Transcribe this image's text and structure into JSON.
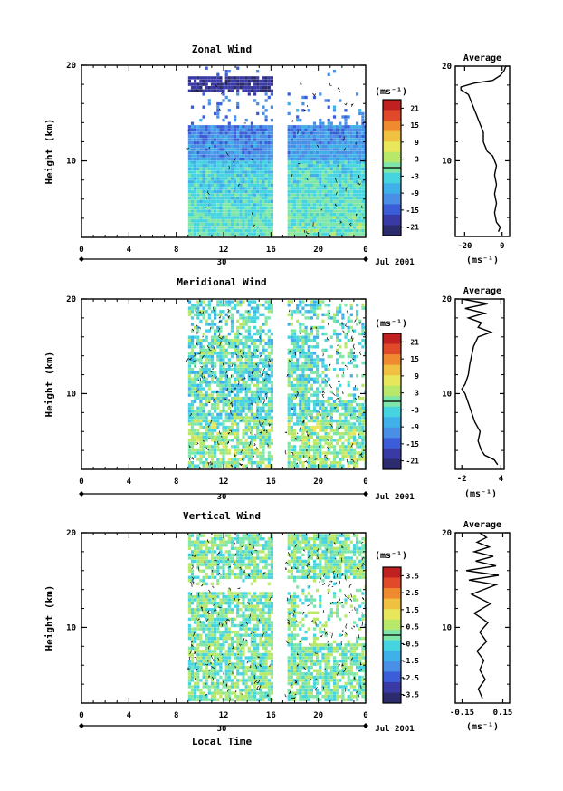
{
  "chart_data": [
    {
      "type": "heatmap",
      "title": "Zonal Wind",
      "ylabel": "Height (km)",
      "xlabel": "",
      "ylim": [
        2,
        20
      ],
      "y_ticks": [
        "20",
        "10"
      ],
      "x_ticks": [
        "0",
        "4",
        "8",
        "12",
        "16",
        "20",
        "0"
      ],
      "date_label": "30",
      "month_label": "Jul 2001",
      "colorbar": {
        "unit": "(ms⁻¹)",
        "ticks": [
          "21",
          "15",
          "9",
          "3",
          "-3",
          "-9",
          "-15",
          "-21"
        ],
        "range": [
          -24,
          24
        ]
      },
      "data_extent": {
        "x_start_hour": 9,
        "x_end_hour": 24,
        "gap_hours": [
          16,
          17.2
        ]
      },
      "profile": {
        "title": "Average",
        "xlabel": "(ms⁻¹)",
        "x_ticks": [
          "-20",
          "0"
        ],
        "xlim": [
          -25,
          4
        ],
        "points": [
          [
            -2,
            2.5
          ],
          [
            -1,
            3
          ],
          [
            -3,
            3.5
          ],
          [
            -4,
            4.5
          ],
          [
            -3,
            5.5
          ],
          [
            -4,
            6.5
          ],
          [
            -3,
            7.5
          ],
          [
            -4,
            8.5
          ],
          [
            -3,
            9.5
          ],
          [
            -5,
            10.5
          ],
          [
            -8,
            11
          ],
          [
            -10,
            12
          ],
          [
            -10,
            13
          ],
          [
            -12,
            14
          ],
          [
            -14,
            15
          ],
          [
            -16,
            16
          ],
          [
            -18,
            17
          ],
          [
            -22,
            17.5
          ],
          [
            -22,
            17.8
          ],
          [
            -15,
            18.2
          ],
          [
            -5,
            18.5
          ],
          [
            -1,
            19
          ],
          [
            1,
            19.5
          ],
          [
            2,
            20
          ]
        ]
      }
    },
    {
      "type": "heatmap",
      "title": "Meridional Wind",
      "ylabel": "Height (km)",
      "xlabel": "",
      "ylim": [
        2,
        20
      ],
      "y_ticks": [
        "20",
        "10"
      ],
      "x_ticks": [
        "0",
        "4",
        "8",
        "12",
        "16",
        "20",
        "0"
      ],
      "date_label": "30",
      "month_label": "Jul 2001",
      "colorbar": {
        "unit": "(ms⁻¹)",
        "ticks": [
          "21",
          "15",
          "9",
          "3",
          "-3",
          "-9",
          "-15",
          "-21"
        ],
        "range": [
          -24,
          24
        ]
      },
      "data_extent": {
        "x_start_hour": 9,
        "x_end_hour": 24,
        "gap_hours": [
          16,
          17.2
        ]
      },
      "profile": {
        "title": "Average",
        "xlabel": "(ms⁻¹)",
        "x_ticks": [
          "-2",
          "4"
        ],
        "xlim": [
          -3,
          4.5
        ],
        "points": [
          [
            3.5,
            2.5
          ],
          [
            3,
            3
          ],
          [
            1.5,
            3.5
          ],
          [
            1,
            4
          ],
          [
            0.5,
            5
          ],
          [
            0.8,
            6
          ],
          [
            0,
            7
          ],
          [
            -0.5,
            8
          ],
          [
            -1,
            9
          ],
          [
            -1.5,
            10
          ],
          [
            -2,
            10.5
          ],
          [
            -1.5,
            11
          ],
          [
            -1,
            12
          ],
          [
            -0.8,
            13
          ],
          [
            -0.5,
            14
          ],
          [
            -0.2,
            15
          ],
          [
            0.5,
            16
          ],
          [
            2.5,
            16.5
          ],
          [
            0.5,
            17
          ],
          [
            1,
            17.5
          ],
          [
            -1,
            18
          ],
          [
            1.5,
            18.5
          ],
          [
            -1.5,
            19
          ],
          [
            2,
            19.5
          ],
          [
            -2,
            20
          ]
        ]
      }
    },
    {
      "type": "heatmap",
      "title": "Vertical Wind",
      "ylabel": "Height (km)",
      "xlabel": "Local Time",
      "ylim": [
        2,
        20
      ],
      "y_ticks": [
        "20",
        "10"
      ],
      "x_ticks": [
        "0",
        "4",
        "8",
        "12",
        "16",
        "20",
        "0"
      ],
      "date_label": "30",
      "month_label": "Jul 2001",
      "colorbar": {
        "unit": "(ms⁻¹)",
        "ticks": [
          "3.5",
          "2.5",
          "1.5",
          "0.5",
          "-0.5",
          "-1.5",
          "-2.5",
          "-3.5"
        ],
        "range": [
          -4,
          4
        ]
      },
      "data_extent": {
        "x_start_hour": 9,
        "x_end_hour": 24,
        "gap_hours": [
          16,
          17.2
        ]
      },
      "profile": {
        "title": "Average",
        "xlabel": "(ms⁻¹)",
        "x_ticks": [
          "-0.15",
          "0.15"
        ],
        "xlim": [
          -0.2,
          0.2
        ],
        "points": [
          [
            0,
            2.5
          ],
          [
            -0.03,
            3.5
          ],
          [
            0.02,
            4.5
          ],
          [
            -0.02,
            5.5
          ],
          [
            0.01,
            6.5
          ],
          [
            -0.04,
            7.5
          ],
          [
            0.03,
            8.5
          ],
          [
            -0.02,
            9.5
          ],
          [
            0.04,
            10.5
          ],
          [
            -0.06,
            11.5
          ],
          [
            0.06,
            12.5
          ],
          [
            -0.08,
            13.5
          ],
          [
            0.1,
            14.5
          ],
          [
            -0.1,
            15
          ],
          [
            0.12,
            15.5
          ],
          [
            -0.12,
            16
          ],
          [
            0.1,
            16.5
          ],
          [
            -0.05,
            17
          ],
          [
            0.08,
            17.5
          ],
          [
            -0.06,
            18
          ],
          [
            0.05,
            18.5
          ],
          [
            -0.04,
            19
          ],
          [
            0.03,
            19.5
          ],
          [
            -0.02,
            20
          ]
        ]
      }
    }
  ]
}
